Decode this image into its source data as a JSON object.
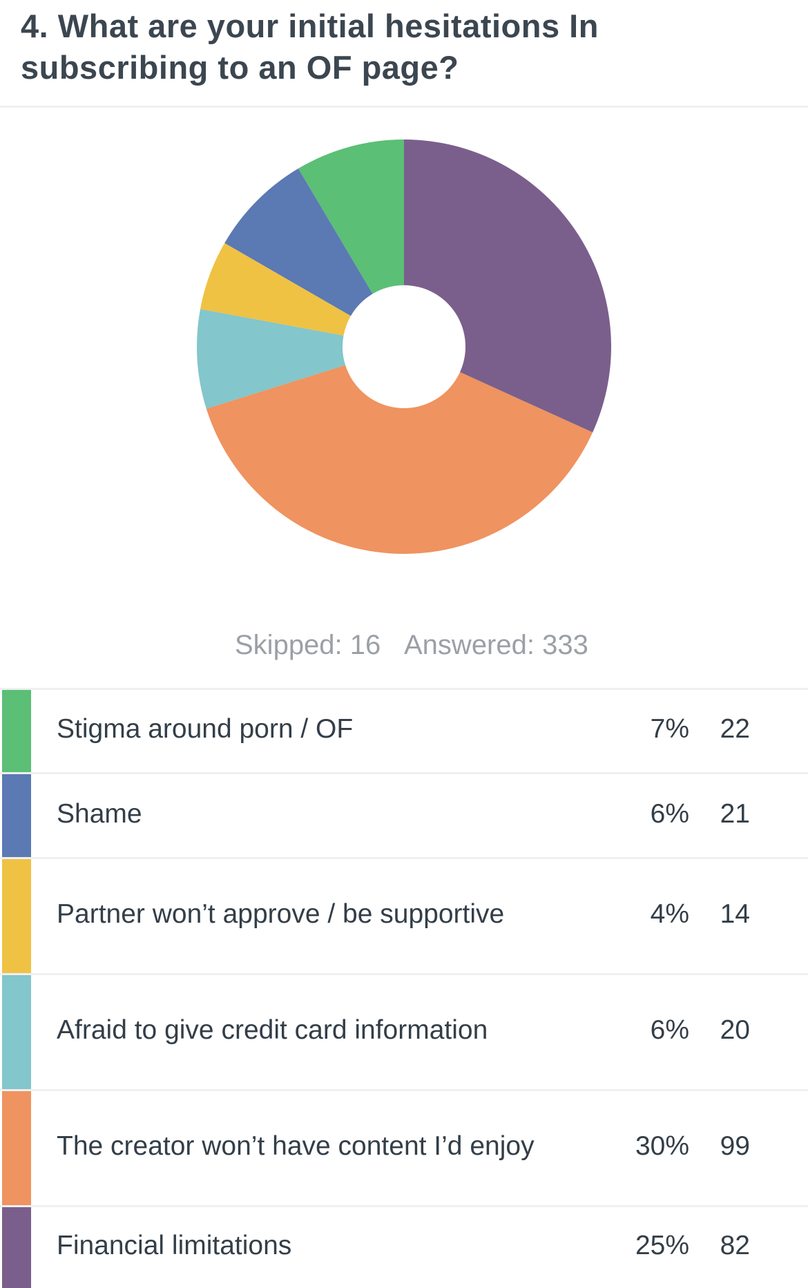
{
  "question": {
    "title": "4. What are your initial hesitations In subscribing to an OF page?"
  },
  "stats": {
    "skipped": "Skipped: 16",
    "answered": "Answered: 333"
  },
  "chart_data": {
    "type": "pie",
    "categories": [
      "Stigma around porn / OF",
      "Shame",
      "Partner won’t approve / be supportive",
      "Afraid to give credit card information",
      "The creator won’t have content I’d enjoy",
      "Financial limitations"
    ],
    "values": [
      22,
      21,
      14,
      20,
      99,
      82
    ],
    "percents": [
      "7%",
      "6%",
      "4%",
      "6%",
      "30%",
      "25%"
    ],
    "counts": [
      "22",
      "21",
      "14",
      "20",
      "99",
      "82"
    ],
    "colors": [
      "#5bbf76",
      "#5b79b3",
      "#efc244",
      "#83c6cb",
      "#ef9360",
      "#7a5f8c"
    ],
    "start": "top",
    "direction": "counterclockwise"
  }
}
